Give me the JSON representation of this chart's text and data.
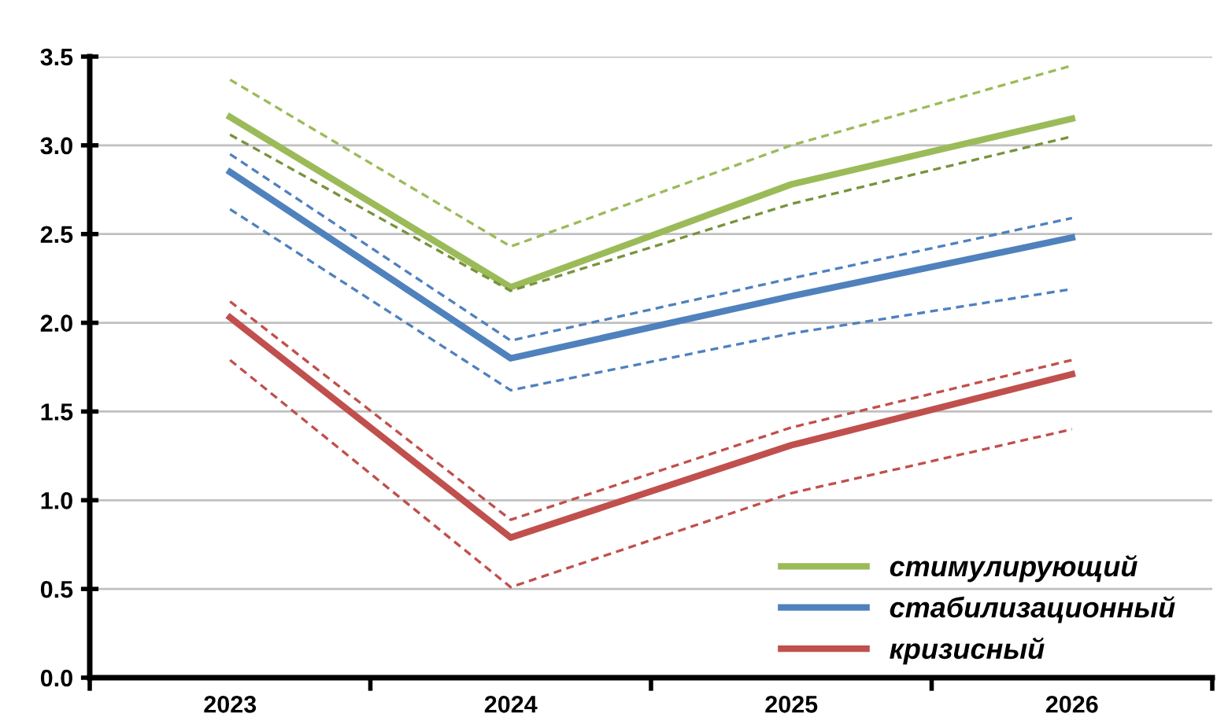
{
  "chart_data": {
    "type": "line",
    "categories": [
      "2023",
      "2024",
      "2025",
      "2026"
    ],
    "series": [
      {
        "name": "стимулирующий",
        "color": "#9bbb59",
        "values": [
          3.16,
          2.2,
          2.78,
          3.15
        ],
        "line_style": "solid"
      },
      {
        "name": "стабилизационный",
        "color": "#4f81bd",
        "values": [
          2.85,
          1.8,
          2.15,
          2.48
        ],
        "line_style": "solid"
      },
      {
        "name": "кризисный",
        "color": "#c0504d",
        "values": [
          2.03,
          0.79,
          1.31,
          1.71
        ],
        "line_style": "solid"
      },
      {
        "color": "#9bbb59",
        "values": [
          3.37,
          2.43,
          3.0,
          3.45
        ],
        "line_style": "dashed"
      },
      {
        "color": "#77933c",
        "values": [
          3.06,
          2.18,
          2.67,
          3.05
        ],
        "line_style": "dashed"
      },
      {
        "color": "#4f81bd",
        "values": [
          2.95,
          1.9,
          2.25,
          2.59
        ],
        "line_style": "dashed"
      },
      {
        "color": "#4f81bd",
        "values": [
          2.64,
          1.62,
          1.94,
          2.19
        ],
        "line_style": "dashed"
      },
      {
        "color": "#c0504d",
        "values": [
          2.12,
          0.89,
          1.41,
          1.79
        ],
        "line_style": "dashed"
      },
      {
        "color": "#c0504d",
        "values": [
          1.79,
          0.51,
          1.04,
          1.4
        ],
        "line_style": "dashed"
      }
    ],
    "ylim": [
      0,
      3.5
    ],
    "yticks": [
      {
        "value": 0,
        "label": "0.0"
      },
      {
        "value": 0.5,
        "label": "0.5"
      },
      {
        "value": 1,
        "label": "1.0"
      },
      {
        "value": 1.5,
        "label": "1.5"
      },
      {
        "value": 2,
        "label": "2.0"
      },
      {
        "value": 2.5,
        "label": "2.5"
      },
      {
        "value": 3,
        "label": "3.0"
      },
      {
        "value": 3.5,
        "label": "3.5"
      }
    ],
    "grid": "y",
    "legend": "bottom right",
    "marker": "none"
  }
}
